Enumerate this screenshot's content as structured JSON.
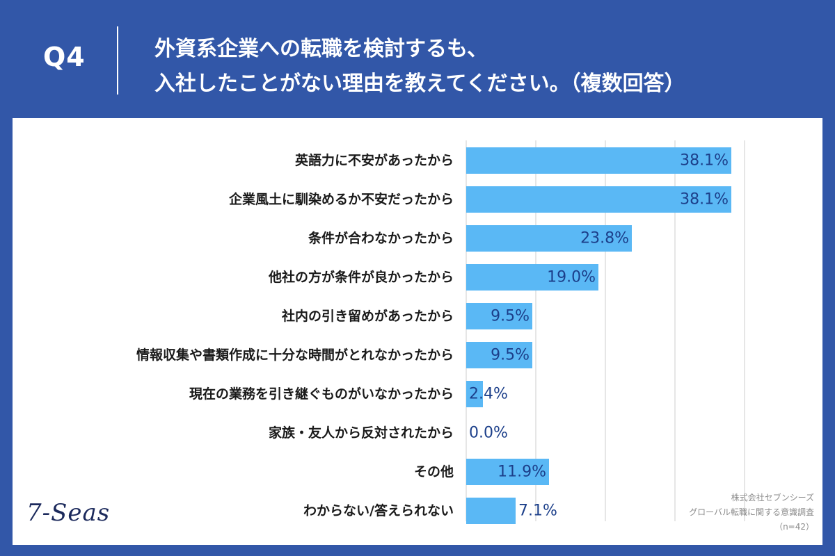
{
  "header": {
    "question_label": "Q4",
    "question_line_1": "外資系企業への転職を検討するも、",
    "question_line_2": "入社したことがない理由を教えてください。（複数回答）"
  },
  "logo_text": "7-Seas",
  "source": {
    "company": "株式会社セブンシーズ",
    "survey": "グローバル転職に関する意識調査",
    "sample": "（n=42）"
  },
  "colors": {
    "header_bg": "#3257a8",
    "bar": "#5ab8f5",
    "value_text": "#1c3f8a",
    "label_text": "#1a1a1a",
    "grid": "#cccccc"
  },
  "chart_data": {
    "type": "bar",
    "orientation": "horizontal",
    "categories": [
      "英語力に不安があったから",
      "企業風土に馴染めるか不安だったから",
      "条件が合わなかったから",
      "他社の方が条件が良かったから",
      "社内の引き留めがあったから",
      "情報収集や書類作成に十分な時間がとれなかったから",
      "現在の業務を引き継ぐものがいなかったから",
      "家族・友人から反対されたから",
      "その他",
      "わからない/答えられない"
    ],
    "values": [
      38.1,
      38.1,
      23.8,
      19.0,
      9.5,
      9.5,
      2.4,
      0.0,
      11.9,
      7.1
    ],
    "value_labels": [
      "38.1%",
      "38.1%",
      "23.8%",
      "19.0%",
      "9.5%",
      "9.5%",
      "2.4%",
      "0.0%",
      "11.9%",
      "7.1%"
    ],
    "xlim": [
      0,
      40
    ],
    "grid": true
  }
}
